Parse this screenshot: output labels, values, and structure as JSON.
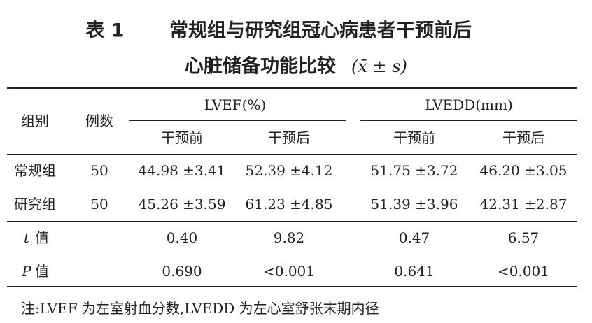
{
  "title": {
    "label": "表 1",
    "line1": "常规组与研究组冠心病患者干预前后",
    "line2": "心脏储备功能比较",
    "stat": "(x̄ ± s)"
  },
  "table": {
    "header": {
      "group": "组别",
      "count": "例数",
      "metrics": [
        "LVEF(%)",
        "LVEDD(mm)"
      ],
      "phases": [
        "干预前",
        "干预后",
        "干预前",
        "干预后"
      ]
    },
    "rows": [
      [
        "常规组",
        "50",
        "44.98 ±3.41",
        "52.39 ±4.12",
        "51.75 ±3.72",
        "46.20 ±3.05"
      ],
      [
        "研究组",
        "50",
        "45.26 ±3.59",
        "61.23 ±4.85",
        "51.39 ±3.96",
        "42.31 ±2.87"
      ]
    ],
    "stats": [
      {
        "symbol": "t",
        "label": "值",
        "values": [
          "0.40",
          "9.82",
          "0.47",
          "6.57"
        ]
      },
      {
        "symbol": "P",
        "label": "值",
        "values": [
          "0.690",
          "<0.001",
          "0.641",
          "<0.001"
        ]
      }
    ]
  },
  "note": "注:LVEF 为左室射血分数,LVEDD 为左心室舒张末期内径"
}
